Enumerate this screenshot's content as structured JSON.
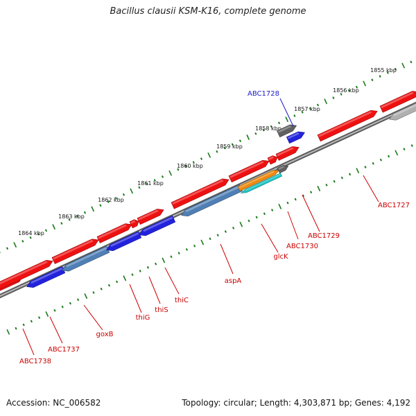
{
  "title": "Bacillus clausii KSM-K16, complete genome",
  "footer": {
    "accession": "Accession: NC_006582",
    "summary": "Topology: circular; Length: 4,303,871 bp; Genes: 4,192"
  },
  "scale_labels": [
    "1855 kbp",
    "1856 kbp",
    "1857 kbp",
    "1858 kbp",
    "1859 kbp",
    "1860 kbp",
    "1861 kbp",
    "1862 kbp",
    "1863 kbp",
    "1864 kbp"
  ],
  "gene_labels": [
    "ABC1728",
    "ABC1727",
    "ABC1729",
    "ABC1730",
    "glcK",
    "aspA",
    "thiC",
    "thiS",
    "thiG",
    "goxB",
    "ABC1737",
    "ABC1738"
  ],
  "colors": {
    "forward_gene": "#ee1111",
    "reverse_gene": "#2222dd",
    "reverse_gene_alt": "#4f7fb5",
    "glcK_gene": "#f08a10",
    "cyan_gene": "#22c6c6",
    "highlight_gene": "#606060",
    "highlight_label": "#1a1acc",
    "backbone": "#808080",
    "scale_ticks": "#1a7a1a",
    "gene_label": "#cc0000"
  }
}
